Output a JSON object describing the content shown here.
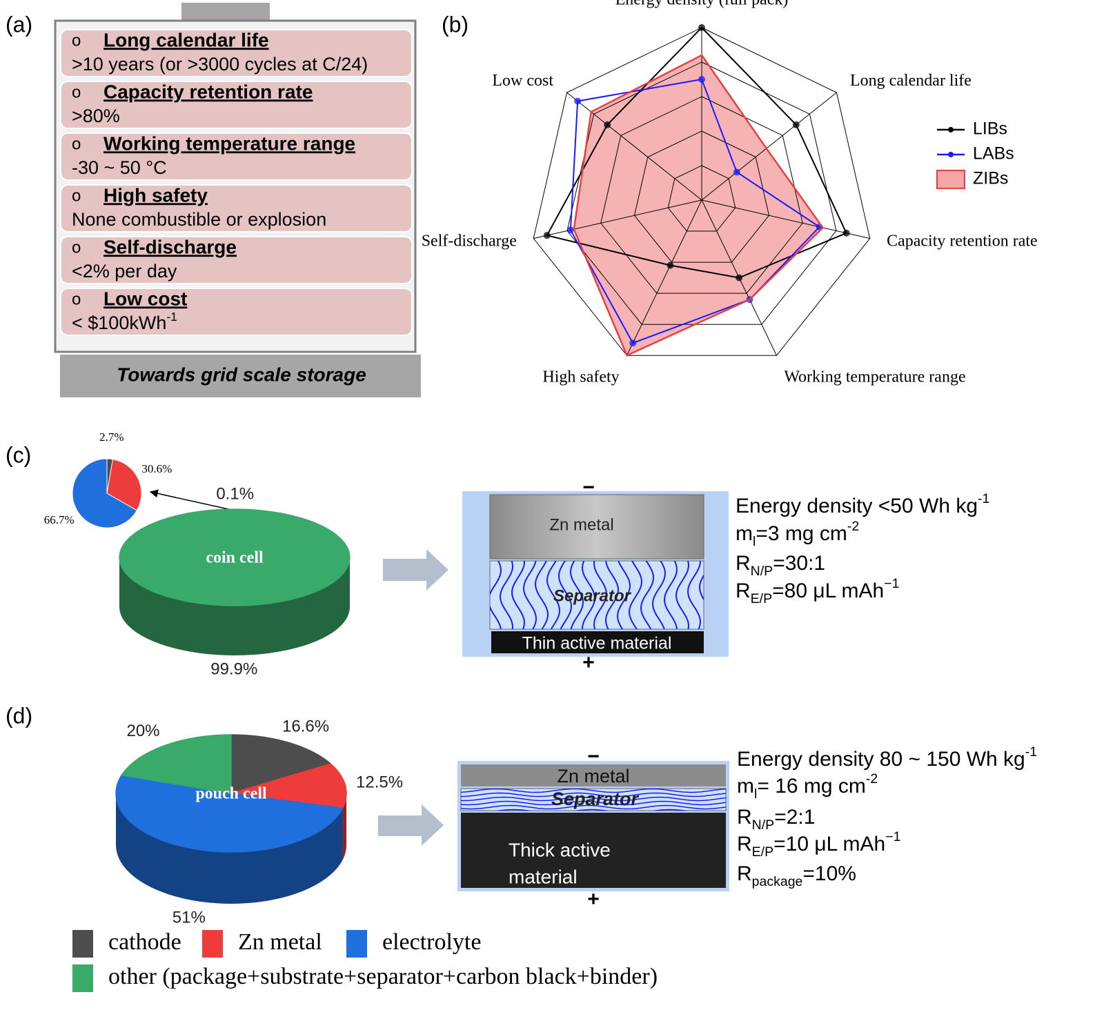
{
  "panel_labels": [
    "(a)",
    "(b)",
    "(c)",
    "(d)"
  ],
  "requirements": {
    "bullet": "o",
    "items": [
      {
        "heading": "Long calendar life",
        "text": [
          {
            "text": ">10 years (or >3000 cycles at C/24)"
          }
        ]
      },
      {
        "heading": "Capacity retention rate",
        "text": [
          {
            "text": ">80%"
          }
        ]
      },
      {
        "heading": "Working temperature range",
        "text": [
          {
            "text": "-30 ~ 50 °C"
          }
        ]
      },
      {
        "heading": "High safety",
        "text": [
          {
            "text": "None combustible or explosion"
          }
        ]
      },
      {
        "heading": "Self-discharge",
        "text": [
          {
            "text": "<2% per day"
          }
        ]
      },
      {
        "heading": "Low cost",
        "text": [
          {
            "text": "< $100kWh"
          },
          {
            "sup": "-1"
          }
        ]
      }
    ],
    "footer": "Towards grid scale storage"
  },
  "chart_data": [
    {
      "type": "radar",
      "axes": [
        "Energy density (full pack)",
        "Long calendar life",
        "Capacity retention rate",
        "Working temperature range",
        "High safety",
        "Self-discharge",
        "Low cost"
      ],
      "rlim": [
        0,
        5
      ],
      "rticks": [
        1,
        2,
        3,
        4,
        5
      ],
      "grid": true,
      "legend": "right",
      "series": [
        {
          "name": "LIBs",
          "color": "#000000",
          "markers": true,
          "values": [
            5,
            3.5,
            4.3,
            2.5,
            2.1,
            4.6,
            3.5
          ]
        },
        {
          "name": "LABs",
          "color": "#1a1aff",
          "markers": true,
          "values": [
            3.5,
            1.3,
            3.5,
            3.2,
            4.6,
            3.9,
            4.6
          ]
        },
        {
          "name": "ZIBs",
          "color": "#e84040",
          "fill": "#f4a6a6",
          "markers": false,
          "values": [
            4.2,
            2.4,
            3.6,
            3.2,
            5,
            3.8,
            4.1
          ]
        }
      ]
    },
    {
      "type": "pie",
      "values": [
        2.7,
        30.6,
        66.7
      ],
      "value_labels": [
        "2.7%",
        "30.6%",
        "66.7%"
      ],
      "colors": [
        "#4d4d4d",
        "#ee3b3b",
        "#1f6fdc"
      ]
    },
    {
      "type": "pie3d",
      "label": "coin cell",
      "values": [
        0.1,
        99.9
      ],
      "value_labels": [
        "0.1%",
        "99.9%"
      ],
      "colors": [
        "#ffffff",
        "#3aaa6a"
      ]
    },
    {
      "type": "pie3d",
      "label": "pouch cell",
      "categories": [
        "cathode",
        "Zn metal",
        "electrolyte",
        "other (package+substrate+separator+carbon black+binder)"
      ],
      "values": [
        16.6,
        12.5,
        51,
        20
      ],
      "value_labels": [
        "16.6%",
        "12.5%",
        "51%",
        "20%"
      ],
      "colors": [
        "#4d4d4d",
        "#ee3b3b",
        "#1f6fdc",
        "#3aaa6a"
      ]
    }
  ],
  "cells": [
    {
      "negative": "−",
      "positive": "+",
      "anode": "Zn metal",
      "separator": "Separator",
      "cathode": [
        "Thin active material"
      ],
      "specs": [
        [
          {
            "text": "Energy density <50 Wh kg"
          },
          {
            "sup": "-1"
          }
        ],
        [
          {
            "text": "m"
          },
          {
            "sub": "l"
          },
          {
            "text": "=3 mg cm"
          },
          {
            "sup": "-2"
          }
        ],
        [
          {
            "text": "R"
          },
          {
            "sub": "N/P"
          },
          {
            "text": "=30:1"
          }
        ],
        [
          {
            "text": "R"
          },
          {
            "sub": "E/P"
          },
          {
            "text": "=80 μL mAh"
          },
          {
            "sup": "−1"
          }
        ]
      ]
    },
    {
      "negative": "−",
      "positive": "+",
      "anode": "Zn metal",
      "separator": "Separator",
      "cathode": [
        "Thick active",
        "material"
      ],
      "specs": [
        [
          {
            "text": "Energy density 80 ~ 150 Wh kg"
          },
          {
            "sup": "-1"
          }
        ],
        [
          {
            "text": "m"
          },
          {
            "sub": "l"
          },
          {
            "text": "= 16 mg cm"
          },
          {
            "sup": "-2"
          }
        ],
        [
          {
            "text": "R"
          },
          {
            "sub": "N/P"
          },
          {
            "text": "=2:1"
          }
        ],
        [
          {
            "text": "R"
          },
          {
            "sub": "E/P"
          },
          {
            "text": "=10 μL mAh"
          },
          {
            "sup": "−1"
          }
        ],
        [
          {
            "text": "R"
          },
          {
            "sub": "package"
          },
          {
            "text": "=10%"
          }
        ]
      ]
    }
  ]
}
